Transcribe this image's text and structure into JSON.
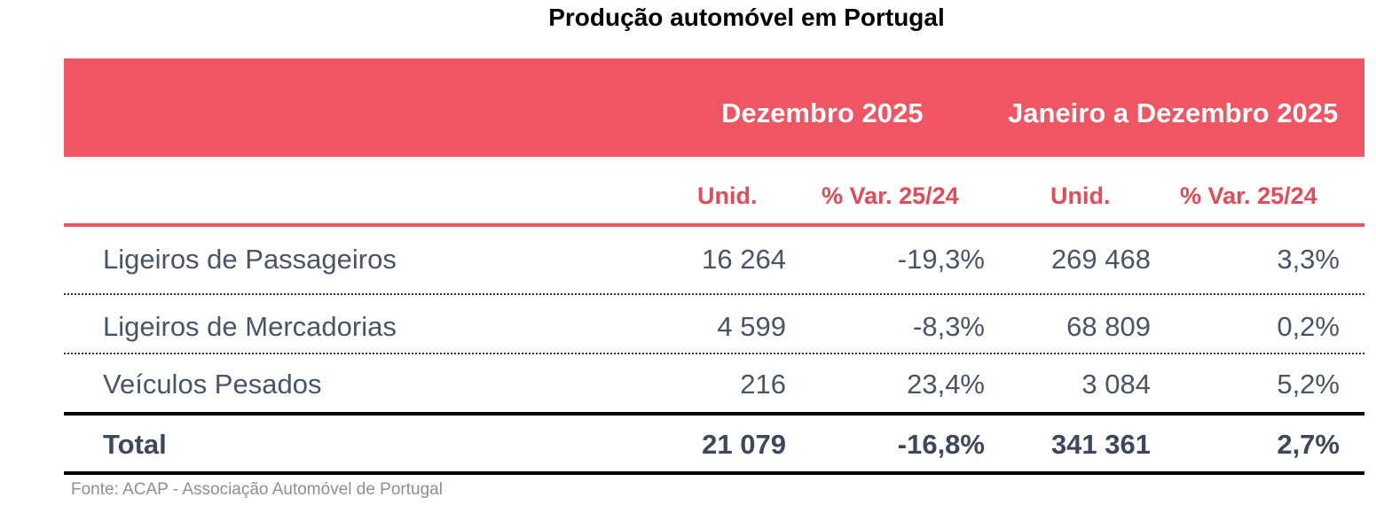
{
  "title": "Produção automóvel em Portugal",
  "colors": {
    "header_band": "#ef5562",
    "subheader_text": "#e34b58",
    "body_text": "#4a5467",
    "source_text": "#8a8f98"
  },
  "table": {
    "period_headers": [
      "Dezembro 2025",
      "Janeiro a Dezembro 2025"
    ],
    "column_headers": [
      "Unid.",
      "% Var. 25/24",
      "Unid.",
      "% Var. 25/24"
    ],
    "rows": [
      {
        "label": "Ligeiros de Passageiros",
        "dez_unid": "16 264",
        "dez_var": "-19,3%",
        "ano_unid": "269 468",
        "ano_var": "3,3%"
      },
      {
        "label": "Ligeiros de Mercadorias",
        "dez_unid": "4 599",
        "dez_var": "-8,3%",
        "ano_unid": "68 809",
        "ano_var": "0,2%"
      },
      {
        "label": "Veículos Pesados",
        "dez_unid": "216",
        "dez_var": "23,4%",
        "ano_unid": "3 084",
        "ano_var": "5,2%"
      }
    ],
    "total": {
      "label": "Total",
      "dez_unid": "21 079",
      "dez_var": "-16,8%",
      "ano_unid": "341 361",
      "ano_var": "2,7%"
    }
  },
  "source": "Fonte: ACAP - Associação Automóvel de Portugal"
}
